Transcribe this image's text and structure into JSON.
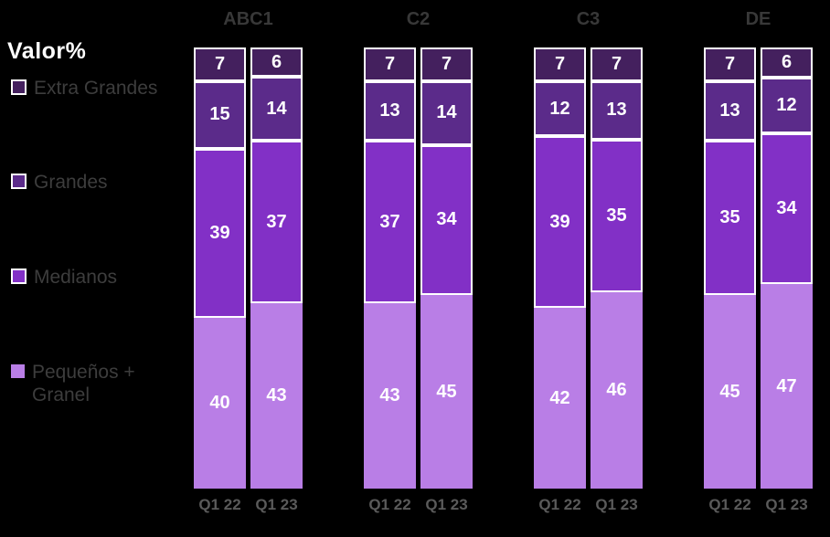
{
  "title": "Valor%",
  "legend": {
    "position": "left",
    "items": [
      {
        "label": "Extra Grandes",
        "color": "#44205E",
        "outlined": true
      },
      {
        "label": "Grandes",
        "color": "#5B2B8A",
        "outlined": true
      },
      {
        "label": "Medianos",
        "color": "#8230C6",
        "outlined": true
      },
      {
        "label": "Pequeños + Granel",
        "color": "#B97EE6",
        "outlined": false
      }
    ]
  },
  "chart_data": {
    "type": "bar",
    "variant": "100-percent-stacked-column",
    "title": "Valor%",
    "value_unit": "percent",
    "legend_position": "left",
    "grid": false,
    "categories": [
      "ABC1",
      "C2",
      "C3",
      "DE"
    ],
    "bar_labels": [
      "Q1 22",
      "Q1 23"
    ],
    "segment_order_top_to_bottom": [
      "Extra Grandes",
      "Grandes",
      "Medianos",
      "Pequeños + Granel"
    ],
    "series": [
      {
        "name": "Extra Grandes",
        "color": "#44205E",
        "values": [
          [
            7,
            6
          ],
          [
            7,
            7
          ],
          [
            7,
            7
          ],
          [
            7,
            6
          ]
        ]
      },
      {
        "name": "Grandes",
        "color": "#5B2B8A",
        "values": [
          [
            15,
            14
          ],
          [
            13,
            14
          ],
          [
            12,
            13
          ],
          [
            13,
            12
          ]
        ]
      },
      {
        "name": "Medianos",
        "color": "#8230C6",
        "values": [
          [
            39,
            37
          ],
          [
            37,
            34
          ],
          [
            39,
            35
          ],
          [
            35,
            34
          ]
        ]
      },
      {
        "name": "Pequeños + Granel",
        "color": "#B97EE6",
        "values": [
          [
            40,
            43
          ],
          [
            43,
            45
          ],
          [
            42,
            46
          ],
          [
            45,
            47
          ]
        ]
      }
    ]
  },
  "colors": {
    "background": "#000000",
    "segment_outline": "#FFFFFF",
    "value_text": "#FFFFFF",
    "title_text": "#FFFFFF",
    "group_header_text": "#383838",
    "legend_text": "#3D3D3D",
    "axis_label_text": "#5A5A5A"
  }
}
